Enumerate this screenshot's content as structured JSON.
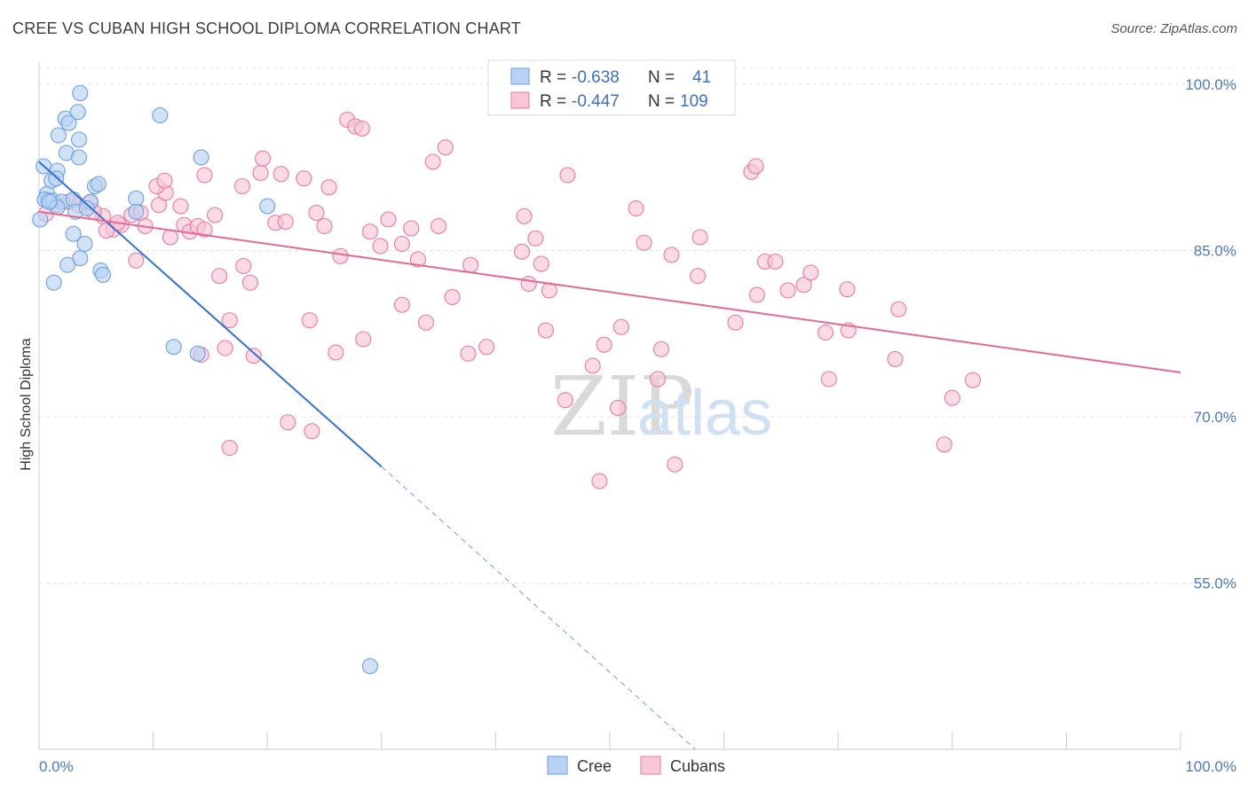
{
  "title": "CREE VS CUBAN HIGH SCHOOL DIPLOMA CORRELATION CHART",
  "source": "Source: ZipAtlas.com",
  "watermark": {
    "zip": "ZIP",
    "atlas": "atlas"
  },
  "chart_data": {
    "type": "scatter",
    "title": "CREE VS CUBAN HIGH SCHOOL DIPLOMA CORRELATION CHART",
    "xlabel": "",
    "ylabel": "High School Diploma",
    "xlim": [
      0,
      100
    ],
    "ylim": [
      40,
      102
    ],
    "x_tick_labels": [
      "0.0%",
      "100.0%"
    ],
    "y_ticks": [
      55,
      70,
      85,
      100
    ],
    "y_tick_labels": [
      "55.0%",
      "70.0%",
      "85.0%",
      "100.0%"
    ],
    "grid": true,
    "legend_position": "top-center",
    "stats": [
      {
        "r_label": "R =",
        "r_value": "-0.638",
        "n_label": "N =",
        "n_value": "41"
      },
      {
        "r_label": "R =",
        "r_value": "-0.447",
        "n_label": "N =",
        "n_value": "109"
      }
    ],
    "series": [
      {
        "name": "Cree",
        "color": "#6a9fe0",
        "fill": "#b9d2f3",
        "trend": {
          "x0": 0,
          "y0": 93.0,
          "x1": 30,
          "y1": 65.5,
          "dash_x1": 57.5,
          "dash_y1": 40
        },
        "points": [
          [
            3.6,
            99.2
          ],
          [
            3.4,
            97.5
          ],
          [
            2.3,
            96.9
          ],
          [
            10.6,
            97.2
          ],
          [
            2.6,
            96.5
          ],
          [
            1.7,
            95.4
          ],
          [
            3.5,
            95.0
          ],
          [
            2.4,
            93.8
          ],
          [
            3.5,
            93.4
          ],
          [
            14.2,
            93.4
          ],
          [
            0.4,
            92.6
          ],
          [
            1.6,
            92.2
          ],
          [
            1.1,
            91.3
          ],
          [
            1.5,
            91.5
          ],
          [
            4.9,
            90.8
          ],
          [
            5.2,
            91.0
          ],
          [
            0.7,
            90.1
          ],
          [
            0.8,
            89.5
          ],
          [
            0.5,
            89.6
          ],
          [
            1.2,
            89.5
          ],
          [
            2.0,
            89.4
          ],
          [
            3.0,
            89.6
          ],
          [
            4.5,
            89.4
          ],
          [
            8.5,
            89.7
          ],
          [
            20.0,
            89.0
          ],
          [
            1.6,
            88.9
          ],
          [
            3.2,
            88.5
          ],
          [
            8.5,
            88.5
          ],
          [
            0.1,
            87.8
          ],
          [
            3.0,
            86.5
          ],
          [
            4.0,
            85.6
          ],
          [
            3.6,
            84.3
          ],
          [
            2.5,
            83.7
          ],
          [
            5.4,
            83.2
          ],
          [
            5.6,
            82.8
          ],
          [
            1.3,
            82.1
          ],
          [
            11.8,
            76.3
          ],
          [
            13.9,
            75.7
          ],
          [
            29.0,
            47.5
          ],
          [
            0.9,
            89.4
          ],
          [
            4.2,
            88.8
          ]
        ]
      },
      {
        "name": "Cubans",
        "color": "#e8799d",
        "fill": "#f8c6d6",
        "trend": {
          "x0": 0,
          "y0": 88.5,
          "x1": 100,
          "y1": 74.0
        },
        "points": [
          [
            0.6,
            88.3
          ],
          [
            1.5,
            89.1
          ],
          [
            2.6,
            89.4
          ],
          [
            3.5,
            89.1
          ],
          [
            4.5,
            89.3
          ],
          [
            5.6,
            88.1
          ],
          [
            6.5,
            86.9
          ],
          [
            7.2,
            87.3
          ],
          [
            8.1,
            88.2
          ],
          [
            8.9,
            88.4
          ],
          [
            9.3,
            87.2
          ],
          [
            10.5,
            89.1
          ],
          [
            11.1,
            90.2
          ],
          [
            11.5,
            86.2
          ],
          [
            12.4,
            89.0
          ],
          [
            12.7,
            87.3
          ],
          [
            13.2,
            86.7
          ],
          [
            13.9,
            87.2
          ],
          [
            14.5,
            86.9
          ],
          [
            14.5,
            91.8
          ],
          [
            15.4,
            88.2
          ],
          [
            4.8,
            88.5
          ],
          [
            5.9,
            86.8
          ],
          [
            6.9,
            87.5
          ],
          [
            10.3,
            90.8
          ],
          [
            11.0,
            91.3
          ],
          [
            8.5,
            84.1
          ],
          [
            15.8,
            82.7
          ],
          [
            17.8,
            90.8
          ],
          [
            17.9,
            83.6
          ],
          [
            18.5,
            82.1
          ],
          [
            19.4,
            92.0
          ],
          [
            19.6,
            93.3
          ],
          [
            20.7,
            87.5
          ],
          [
            21.2,
            91.9
          ],
          [
            21.6,
            87.6
          ],
          [
            23.2,
            91.5
          ],
          [
            24.3,
            88.4
          ],
          [
            25.0,
            87.2
          ],
          [
            25.4,
            90.7
          ],
          [
            26.4,
            84.5
          ],
          [
            27.0,
            96.8
          ],
          [
            27.7,
            96.2
          ],
          [
            28.3,
            96.0
          ],
          [
            29.0,
            86.7
          ],
          [
            29.9,
            85.4
          ],
          [
            30.6,
            87.8
          ],
          [
            31.8,
            85.6
          ],
          [
            32.6,
            87.0
          ],
          [
            33.2,
            84.2
          ],
          [
            34.5,
            93.0
          ],
          [
            35.0,
            87.2
          ],
          [
            35.6,
            94.3
          ],
          [
            37.8,
            83.7
          ],
          [
            16.7,
            78.7
          ],
          [
            18.8,
            75.5
          ],
          [
            23.7,
            78.7
          ],
          [
            26.0,
            75.8
          ],
          [
            28.4,
            77.0
          ],
          [
            31.8,
            80.1
          ],
          [
            33.9,
            78.5
          ],
          [
            36.2,
            80.8
          ],
          [
            37.6,
            75.7
          ],
          [
            39.2,
            76.3
          ],
          [
            42.3,
            84.9
          ],
          [
            42.9,
            82.0
          ],
          [
            42.5,
            88.1
          ],
          [
            43.5,
            86.1
          ],
          [
            44.0,
            83.8
          ],
          [
            44.7,
            81.4
          ],
          [
            44.4,
            77.8
          ],
          [
            46.3,
            91.8
          ],
          [
            49.5,
            76.5
          ],
          [
            48.5,
            74.6
          ],
          [
            46.1,
            71.5
          ],
          [
            50.7,
            70.8
          ],
          [
            52.3,
            88.8
          ],
          [
            53.0,
            85.7
          ],
          [
            54.5,
            76.1
          ],
          [
            55.4,
            84.6
          ],
          [
            57.7,
            82.7
          ],
          [
            57.9,
            86.2
          ],
          [
            61.0,
            78.5
          ],
          [
            62.9,
            81.0
          ],
          [
            62.4,
            92.1
          ],
          [
            62.8,
            92.6
          ],
          [
            63.6,
            84.0
          ],
          [
            64.5,
            84.0
          ],
          [
            65.6,
            81.4
          ],
          [
            67.0,
            81.9
          ],
          [
            67.6,
            83.0
          ],
          [
            68.9,
            77.6
          ],
          [
            69.2,
            73.4
          ],
          [
            70.9,
            77.8
          ],
          [
            70.8,
            81.5
          ],
          [
            75.0,
            75.2
          ],
          [
            75.3,
            79.7
          ],
          [
            79.3,
            67.5
          ],
          [
            80.0,
            71.7
          ],
          [
            81.8,
            73.3
          ],
          [
            16.3,
            76.2
          ],
          [
            21.8,
            69.5
          ],
          [
            23.9,
            68.7
          ],
          [
            16.7,
            67.2
          ],
          [
            49.1,
            64.2
          ],
          [
            55.7,
            65.7
          ],
          [
            14.2,
            75.6
          ],
          [
            54.2,
            73.4
          ],
          [
            51.0,
            78.1
          ]
        ]
      }
    ]
  }
}
